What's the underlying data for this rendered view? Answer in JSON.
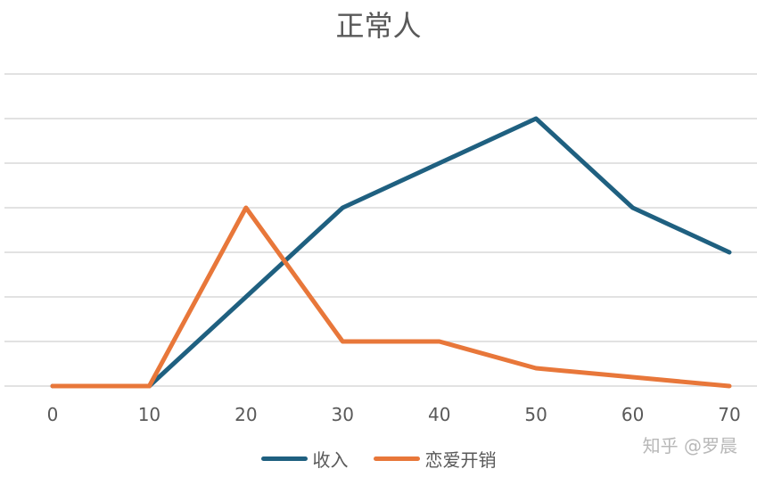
{
  "chart_data": {
    "type": "line",
    "title": "正常人",
    "xlabel": "",
    "ylabel": "",
    "x": [
      0,
      10,
      20,
      30,
      40,
      50,
      60,
      70
    ],
    "ylim": [
      0,
      7
    ],
    "grid": true,
    "legend": "bottom",
    "series": [
      {
        "name": "收入",
        "values": [
          0,
          0,
          2,
          4,
          5,
          6,
          4,
          3
        ],
        "color": "#1f6080"
      },
      {
        "name": "恋爱开销",
        "values": [
          0,
          0,
          4,
          1,
          1,
          0.4,
          0.2,
          0
        ],
        "color": "#e8773a"
      }
    ]
  },
  "watermark": "知乎 @罗晨",
  "colors": {
    "grid": "#d9d9d9",
    "text": "#595959"
  }
}
